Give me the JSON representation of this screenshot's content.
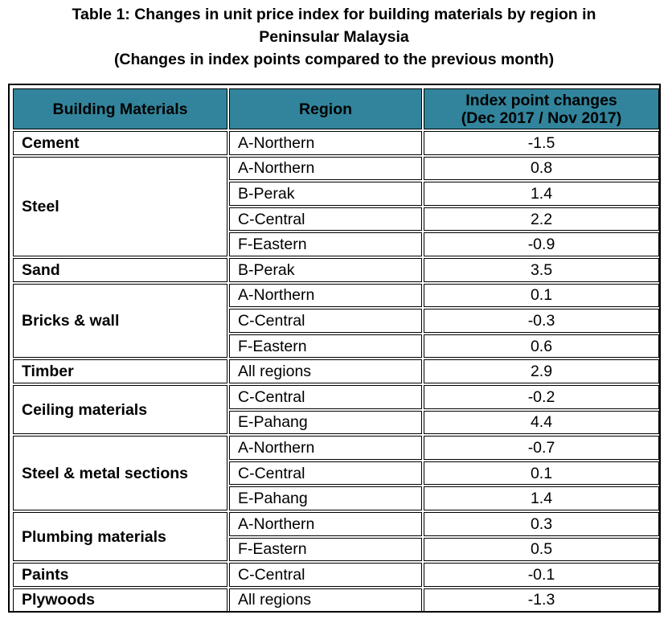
{
  "title": {
    "line1": "Table 1: Changes in unit price index for building materials by region in",
    "line2": "Peninsular Malaysia",
    "line3": "(Changes in index points compared to the previous month)"
  },
  "header": {
    "materials": "Building Materials",
    "region": "Region",
    "changes_line1": "Index point changes",
    "changes_line2": "(Dec 2017 / Nov 2017)"
  },
  "groups": [
    {
      "material": "Cement",
      "rows": [
        {
          "region": "A-Northern",
          "value": "-1.5"
        }
      ]
    },
    {
      "material": "Steel",
      "rows": [
        {
          "region": "A-Northern",
          "value": "0.8"
        },
        {
          "region": "B-Perak",
          "value": "1.4"
        },
        {
          "region": "C-Central",
          "value": "2.2"
        },
        {
          "region": "F-Eastern",
          "value": "-0.9"
        }
      ]
    },
    {
      "material": "Sand",
      "rows": [
        {
          "region": "B-Perak",
          "value": "3.5"
        }
      ]
    },
    {
      "material": "Bricks & wall",
      "rows": [
        {
          "region": "A-Northern",
          "value": "0.1"
        },
        {
          "region": "C-Central",
          "value": "-0.3"
        },
        {
          "region": "F-Eastern",
          "value": "0.6"
        }
      ]
    },
    {
      "material": "Timber",
      "rows": [
        {
          "region": "All regions",
          "value": "2.9"
        }
      ]
    },
    {
      "material": "Ceiling materials",
      "rows": [
        {
          "region": "C-Central",
          "value": "-0.2"
        },
        {
          "region": "E-Pahang",
          "value": "4.4"
        }
      ]
    },
    {
      "material": "Steel & metal sections",
      "rows": [
        {
          "region": "A-Northern",
          "value": "-0.7"
        },
        {
          "region": "C-Central",
          "value": "0.1"
        },
        {
          "region": "E-Pahang",
          "value": "1.4"
        }
      ]
    },
    {
      "material": "Plumbing materials",
      "rows": [
        {
          "region": "A-Northern",
          "value": "0.3"
        },
        {
          "region": "F-Eastern",
          "value": "0.5"
        }
      ]
    },
    {
      "material": "Paints",
      "rows": [
        {
          "region": "C-Central",
          "value": "-0.1"
        }
      ]
    },
    {
      "material": "Plywoods",
      "rows": [
        {
          "region": "All regions",
          "value": "-1.3"
        }
      ]
    }
  ],
  "colors": {
    "header_background": "#31849b"
  }
}
